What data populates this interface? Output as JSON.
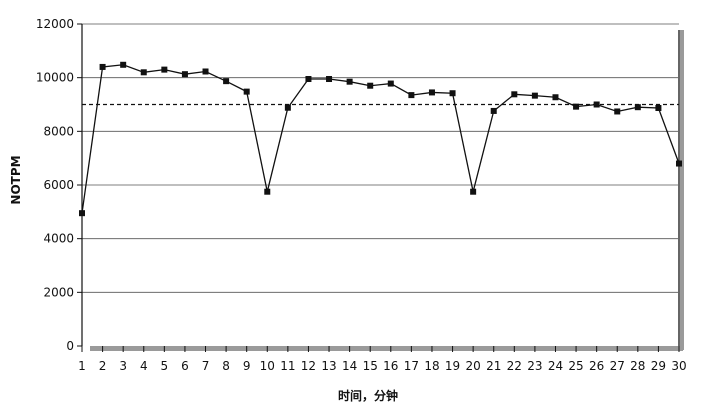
{
  "chart_data": {
    "type": "line",
    "title": "",
    "xlabel": "时间，分钟",
    "ylabel": "NOTPM",
    "x": [
      1,
      2,
      3,
      4,
      5,
      6,
      7,
      8,
      9,
      10,
      11,
      12,
      13,
      14,
      15,
      16,
      17,
      18,
      19,
      20,
      21,
      22,
      23,
      24,
      25,
      26,
      27,
      28,
      29,
      30
    ],
    "series": [
      {
        "values": [
          4950,
          10400,
          10480,
          10200,
          10300,
          10130,
          10230,
          9870,
          9480,
          5750,
          8880,
          9950,
          9950,
          9850,
          9700,
          9780,
          9350,
          9450,
          9420,
          5750,
          8760,
          9380,
          9330,
          9270,
          8920,
          9000,
          8740,
          8900,
          8870,
          6800
        ]
      }
    ],
    "reference_line": {
      "y": 9000,
      "style": "dashed"
    },
    "xlim": [
      1,
      30
    ],
    "ylim": [
      0,
      12000
    ],
    "yticks": [
      0,
      2000,
      4000,
      6000,
      8000,
      10000,
      12000
    ],
    "grid": true,
    "colors": {
      "line": "#111111",
      "marker": "#111111",
      "grid": "#555555",
      "plot_bg": "#ffffff"
    }
  }
}
